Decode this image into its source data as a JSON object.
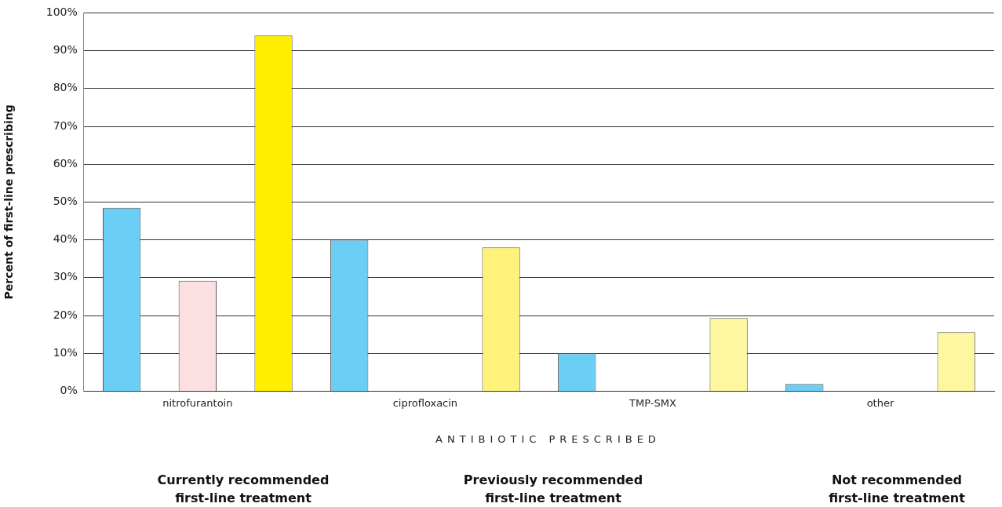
{
  "chart_data": {
    "type": "bar",
    "ylabel": "Percent of first-line prescribing",
    "xlabel": "ANTIBIOTIC PRESCRIBED",
    "categories": [
      "nitrofurantoin",
      "ciprofloxacin",
      "TMP-SMX",
      "other"
    ],
    "series": [
      {
        "color": "#6bcff5",
        "values": [
          48.5,
          40,
          10,
          1.9
        ]
      },
      {
        "color": "#fce0e1",
        "values": [
          29.2,
          null,
          null,
          null
        ]
      },
      {
        "colors": [
          "#ffee00",
          "#fff27a",
          "#fff7a0",
          "#fff7a0"
        ],
        "values": [
          94,
          38,
          19.3,
          15.6
        ]
      }
    ],
    "ylim": [
      0,
      100
    ],
    "yticks": [
      {
        "value": 0,
        "label": "0%"
      },
      {
        "value": 10,
        "label": "10%"
      },
      {
        "value": 20,
        "label": "20%"
      },
      {
        "value": 30,
        "label": "30%"
      },
      {
        "value": 40,
        "label": "40%"
      },
      {
        "value": 50,
        "label": "50%"
      },
      {
        "value": 60,
        "label": "60%"
      },
      {
        "value": 70,
        "label": "70%"
      },
      {
        "value": 80,
        "label": "80%"
      },
      {
        "value": 90,
        "label": "90%"
      },
      {
        "value": 100,
        "label": "100%"
      }
    ],
    "grid": "y",
    "legend": false,
    "annotations": [
      "Currently recommended\nfirst-line treatment",
      "Previously recommended\nfirst-line treatment",
      "Not recommended\nfirst-line treatment"
    ]
  }
}
